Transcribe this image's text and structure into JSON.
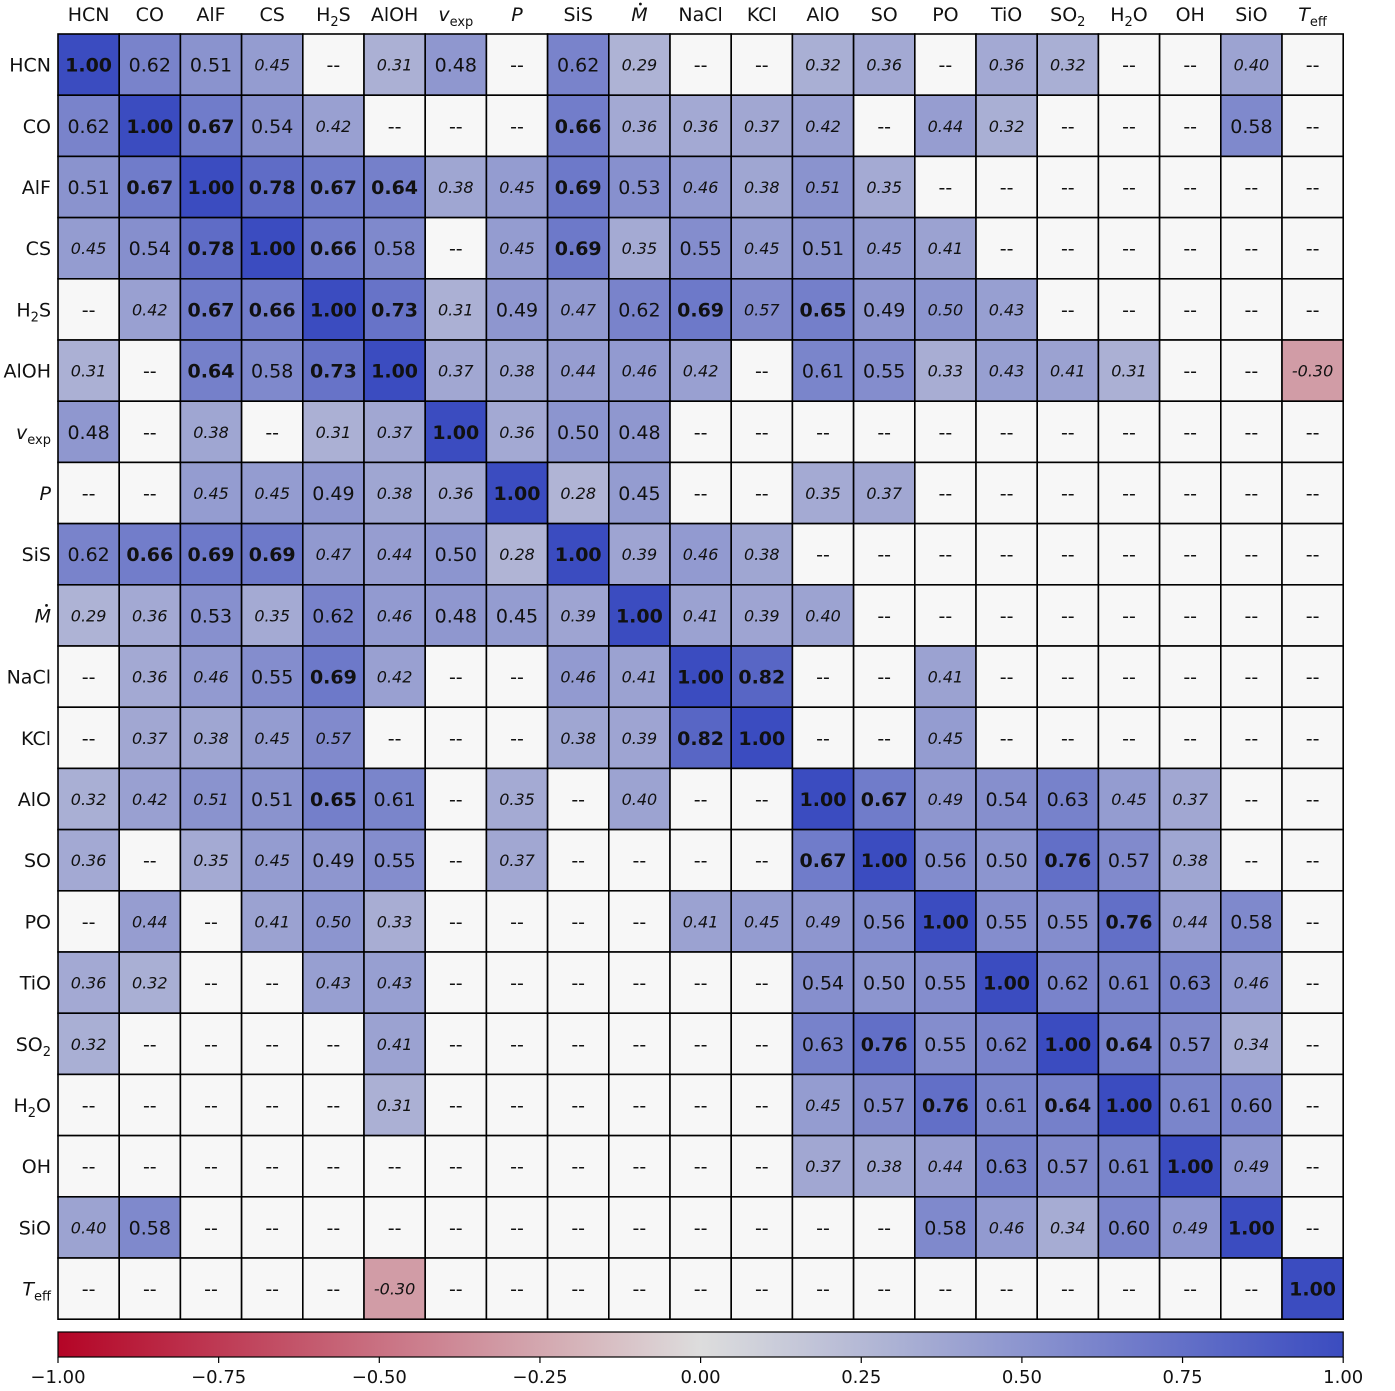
{
  "chart_data": {
    "type": "heatmap",
    "title": "",
    "xlabel": "",
    "ylabel": "",
    "labels": [
      {
        "text": "HCN"
      },
      {
        "text": "CO"
      },
      {
        "text": "AlF"
      },
      {
        "text": "CS"
      },
      {
        "text": "H",
        "sub": "2",
        "post": "S"
      },
      {
        "text": "AlOH"
      },
      {
        "text": "v",
        "sub": "exp",
        "italic": true
      },
      {
        "text": "P",
        "italic": true
      },
      {
        "text": "SiS"
      },
      {
        "text": "M",
        "italic": true,
        "dot": true
      },
      {
        "text": "NaCl"
      },
      {
        "text": "KCl"
      },
      {
        "text": "AlO"
      },
      {
        "text": "SO"
      },
      {
        "text": "PO"
      },
      {
        "text": "TiO"
      },
      {
        "text": "SO",
        "sub": "2"
      },
      {
        "text": "H",
        "sub": "2",
        "post": "O"
      },
      {
        "text": "OH"
      },
      {
        "text": "SiO"
      },
      {
        "text": "T",
        "sub": "eff",
        "italic": true
      }
    ],
    "matrix": [
      [
        "1.00",
        "0.62",
        "0.51",
        "0.45",
        "--",
        "0.31",
        "0.48",
        "--",
        "0.62",
        "0.29",
        "--",
        "--",
        "0.32",
        "0.36",
        "--",
        "0.36",
        "0.32",
        "--",
        "--",
        "0.40",
        "--"
      ],
      [
        "0.62",
        "1.00",
        "0.67",
        "0.54",
        "0.42",
        "--",
        "--",
        "--",
        "0.66",
        "0.36",
        "0.36",
        "0.37",
        "0.42",
        "--",
        "0.44",
        "0.32",
        "--",
        "--",
        "--",
        "0.58",
        "--"
      ],
      [
        "0.51",
        "0.67",
        "1.00",
        "0.78",
        "0.67",
        "0.64",
        "0.38",
        "0.45",
        "0.69",
        "0.53",
        "0.46",
        "0.38",
        "0.51",
        "0.35",
        "--",
        "--",
        "--",
        "--",
        "--",
        "--",
        "--"
      ],
      [
        "0.45",
        "0.54",
        "0.78",
        "1.00",
        "0.66",
        "0.58",
        "--",
        "0.45",
        "0.69",
        "0.35",
        "0.55",
        "0.45",
        "0.51",
        "0.45",
        "0.41",
        "--",
        "--",
        "--",
        "--",
        "--",
        "--"
      ],
      [
        "--",
        "0.42",
        "0.67",
        "0.66",
        "1.00",
        "0.73",
        "0.31",
        "0.49",
        "0.47",
        "0.62",
        "0.69",
        "0.57",
        "0.65",
        "0.49",
        "0.50",
        "0.43",
        "--",
        "--",
        "--",
        "--",
        "--"
      ],
      [
        "0.31",
        "--",
        "0.64",
        "0.58",
        "0.73",
        "1.00",
        "0.37",
        "0.38",
        "0.44",
        "0.46",
        "0.42",
        "--",
        "0.61",
        "0.55",
        "0.33",
        "0.43",
        "0.41",
        "0.31",
        "--",
        "--",
        "-0.30"
      ],
      [
        "0.48",
        "--",
        "0.38",
        "--",
        "0.31",
        "0.37",
        "1.00",
        "0.36",
        "0.50",
        "0.48",
        "--",
        "--",
        "--",
        "--",
        "--",
        "--",
        "--",
        "--",
        "--",
        "--",
        "--"
      ],
      [
        "--",
        "--",
        "0.45",
        "0.45",
        "0.49",
        "0.38",
        "0.36",
        "1.00",
        "0.28",
        "0.45",
        "--",
        "--",
        "0.35",
        "0.37",
        "--",
        "--",
        "--",
        "--",
        "--",
        "--",
        "--"
      ],
      [
        "0.62",
        "0.66",
        "0.69",
        "0.69",
        "0.47",
        "0.44",
        "0.50",
        "0.28",
        "1.00",
        "0.39",
        "0.46",
        "0.38",
        "--",
        "--",
        "--",
        "--",
        "--",
        "--",
        "--",
        "--",
        "--"
      ],
      [
        "0.29",
        "0.36",
        "0.53",
        "0.35",
        "0.62",
        "0.46",
        "0.48",
        "0.45",
        "0.39",
        "1.00",
        "0.41",
        "0.39",
        "0.40",
        "--",
        "--",
        "--",
        "--",
        "--",
        "--",
        "--",
        "--"
      ],
      [
        "--",
        "0.36",
        "0.46",
        "0.55",
        "0.69",
        "0.42",
        "--",
        "--",
        "0.46",
        "0.41",
        "1.00",
        "0.82",
        "--",
        "--",
        "0.41",
        "--",
        "--",
        "--",
        "--",
        "--",
        "--"
      ],
      [
        "--",
        "0.37",
        "0.38",
        "0.45",
        "0.57",
        "--",
        "--",
        "--",
        "0.38",
        "0.39",
        "0.82",
        "1.00",
        "--",
        "--",
        "0.45",
        "--",
        "--",
        "--",
        "--",
        "--",
        "--"
      ],
      [
        "0.32",
        "0.42",
        "0.51",
        "0.51",
        "0.65",
        "0.61",
        "--",
        "0.35",
        "--",
        "0.40",
        "--",
        "--",
        "1.00",
        "0.67",
        "0.49",
        "0.54",
        "0.63",
        "0.45",
        "0.37",
        "--",
        "--"
      ],
      [
        "0.36",
        "--",
        "0.35",
        "0.45",
        "0.49",
        "0.55",
        "--",
        "0.37",
        "--",
        "--",
        "--",
        "--",
        "0.67",
        "1.00",
        "0.56",
        "0.50",
        "0.76",
        "0.57",
        "0.38",
        "--",
        "--"
      ],
      [
        "--",
        "0.44",
        "--",
        "0.41",
        "0.50",
        "0.33",
        "--",
        "--",
        "--",
        "--",
        "0.41",
        "0.45",
        "0.49",
        "0.56",
        "1.00",
        "0.55",
        "0.55",
        "0.76",
        "0.44",
        "0.58",
        "--"
      ],
      [
        "0.36",
        "0.32",
        "--",
        "--",
        "0.43",
        "0.43",
        "--",
        "--",
        "--",
        "--",
        "--",
        "--",
        "0.54",
        "0.50",
        "0.55",
        "1.00",
        "0.62",
        "0.61",
        "0.63",
        "0.46",
        "--"
      ],
      [
        "0.32",
        "--",
        "--",
        "--",
        "--",
        "0.41",
        "--",
        "--",
        "--",
        "--",
        "--",
        "--",
        "0.63",
        "0.76",
        "0.55",
        "0.62",
        "1.00",
        "0.64",
        "0.57",
        "0.34",
        "--"
      ],
      [
        "--",
        "--",
        "--",
        "--",
        "--",
        "0.31",
        "--",
        "--",
        "--",
        "--",
        "--",
        "--",
        "0.45",
        "0.57",
        "0.76",
        "0.61",
        "0.64",
        "1.00",
        "0.61",
        "0.60",
        "--"
      ],
      [
        "--",
        "--",
        "--",
        "--",
        "--",
        "--",
        "--",
        "--",
        "--",
        "--",
        "--",
        "--",
        "0.37",
        "0.38",
        "0.44",
        "0.63",
        "0.57",
        "0.61",
        "1.00",
        "0.49",
        "--"
      ],
      [
        "0.40",
        "0.58",
        "--",
        "--",
        "--",
        "--",
        "--",
        "--",
        "--",
        "--",
        "--",
        "--",
        "--",
        "--",
        "0.58",
        "0.46",
        "0.34",
        "0.60",
        "0.49",
        "1.00",
        "--"
      ],
      [
        "--",
        "--",
        "--",
        "--",
        "--",
        "-0.30",
        "--",
        "--",
        "--",
        "--",
        "--",
        "--",
        "--",
        "--",
        "--",
        "--",
        "--",
        "--",
        "--",
        "--",
        "1.00"
      ]
    ],
    "italic_cells": [
      [
        0,
        3
      ],
      [
        0,
        5
      ],
      [
        0,
        9
      ],
      [
        0,
        12
      ],
      [
        0,
        13
      ],
      [
        0,
        15
      ],
      [
        0,
        16
      ],
      [
        0,
        19
      ],
      [
        1,
        4
      ],
      [
        1,
        9
      ],
      [
        1,
        10
      ],
      [
        1,
        11
      ],
      [
        1,
        12
      ],
      [
        1,
        14
      ],
      [
        1,
        15
      ],
      [
        2,
        6
      ],
      [
        2,
        7
      ],
      [
        2,
        10
      ],
      [
        2,
        11
      ],
      [
        2,
        12
      ],
      [
        2,
        13
      ],
      [
        3,
        0
      ],
      [
        3,
        7
      ],
      [
        3,
        9
      ],
      [
        3,
        11
      ],
      [
        3,
        13
      ],
      [
        3,
        14
      ],
      [
        4,
        1
      ],
      [
        4,
        6
      ],
      [
        4,
        8
      ],
      [
        4,
        11
      ],
      [
        4,
        14
      ],
      [
        4,
        15
      ],
      [
        5,
        0
      ],
      [
        5,
        6
      ],
      [
        5,
        7
      ],
      [
        5,
        8
      ],
      [
        5,
        9
      ],
      [
        5,
        10
      ],
      [
        5,
        14
      ],
      [
        5,
        15
      ],
      [
        5,
        16
      ],
      [
        5,
        17
      ],
      [
        5,
        20
      ],
      [
        6,
        2
      ],
      [
        6,
        4
      ],
      [
        6,
        5
      ],
      [
        6,
        7
      ],
      [
        7,
        2
      ],
      [
        7,
        3
      ],
      [
        7,
        5
      ],
      [
        7,
        6
      ],
      [
        7,
        8
      ],
      [
        7,
        12
      ],
      [
        7,
        13
      ],
      [
        8,
        4
      ],
      [
        8,
        5
      ],
      [
        8,
        7
      ],
      [
        8,
        9
      ],
      [
        8,
        10
      ],
      [
        8,
        11
      ],
      [
        9,
        0
      ],
      [
        9,
        1
      ],
      [
        9,
        3
      ],
      [
        9,
        5
      ],
      [
        9,
        8
      ],
      [
        9,
        10
      ],
      [
        9,
        11
      ],
      [
        9,
        12
      ],
      [
        10,
        1
      ],
      [
        10,
        2
      ],
      [
        10,
        5
      ],
      [
        10,
        8
      ],
      [
        10,
        9
      ],
      [
        10,
        14
      ],
      [
        11,
        1
      ],
      [
        11,
        2
      ],
      [
        11,
        3
      ],
      [
        11,
        4
      ],
      [
        11,
        8
      ],
      [
        11,
        9
      ],
      [
        11,
        14
      ],
      [
        12,
        0
      ],
      [
        12,
        1
      ],
      [
        12,
        2
      ],
      [
        12,
        7
      ],
      [
        12,
        9
      ],
      [
        12,
        14
      ],
      [
        12,
        17
      ],
      [
        12,
        18
      ],
      [
        13,
        0
      ],
      [
        13,
        2
      ],
      [
        13,
        3
      ],
      [
        13,
        7
      ],
      [
        13,
        18
      ],
      [
        14,
        1
      ],
      [
        14,
        3
      ],
      [
        14,
        4
      ],
      [
        14,
        5
      ],
      [
        14,
        10
      ],
      [
        14,
        11
      ],
      [
        14,
        12
      ],
      [
        14,
        18
      ],
      [
        15,
        0
      ],
      [
        15,
        1
      ],
      [
        15,
        4
      ],
      [
        15,
        5
      ],
      [
        15,
        19
      ],
      [
        16,
        0
      ],
      [
        16,
        5
      ],
      [
        16,
        19
      ],
      [
        17,
        5
      ],
      [
        17,
        12
      ],
      [
        18,
        12
      ],
      [
        18,
        13
      ],
      [
        18,
        14
      ],
      [
        18,
        19
      ],
      [
        19,
        0
      ],
      [
        19,
        15
      ],
      [
        19,
        16
      ],
      [
        19,
        18
      ],
      [
        20,
        5
      ]
    ],
    "bold_threshold": 0.64,
    "colorbar": {
      "range": [
        -1.0,
        1.0
      ],
      "ticks": [
        "−1.00",
        "−0.75",
        "−0.50",
        "−0.25",
        "0.00",
        "0.25",
        "0.50",
        "0.75",
        "1.00"
      ],
      "colormap": "coolwarm",
      "reversed": true,
      "low_color": "#b40426",
      "mid_color": "#dddddd",
      "high_color": "#3b4cc0",
      "missing_color": "#f7f7f7",
      "placement": "bottom"
    },
    "grid": true
  }
}
